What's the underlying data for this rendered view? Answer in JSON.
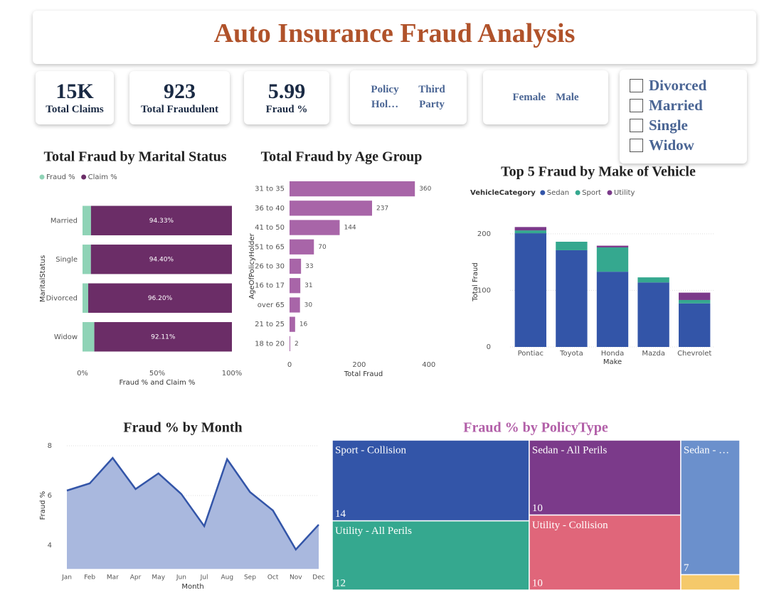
{
  "header": {
    "title": "Auto Insurance Fraud Analysis"
  },
  "cards": [
    {
      "value": "15K",
      "label": "Total Claims"
    },
    {
      "value": 923,
      "label": "Total Fraudulent"
    },
    {
      "value": 5.99,
      "label": "Fraud %"
    }
  ],
  "slicers": [
    {
      "items": [
        "Policy Hol…",
        "Third Party"
      ]
    },
    {
      "items": [
        "Female",
        "Male"
      ]
    },
    {
      "items": [
        "Divorced",
        "Married",
        "Single",
        "Widow"
      ]
    }
  ],
  "chart_data": [
    {
      "type": "bar",
      "orientation": "horizontal",
      "stacked": true,
      "title": "Total Fraud by Marital Status",
      "categories": [
        "Married",
        "Single",
        "Divorced",
        "Widow"
      ],
      "series": [
        {
          "name": "Fraud %",
          "color": "#8fd3b6",
          "values": [
            5.67,
            5.6,
            3.8,
            7.89
          ]
        },
        {
          "name": "Claim %",
          "color": "#6b2d67",
          "values": [
            94.33,
            94.4,
            96.2,
            92.11
          ],
          "value_labels": [
            "94.33%",
            "94.40%",
            "96.20%",
            "92.11%"
          ]
        }
      ],
      "xlim": [
        0,
        100
      ],
      "xticks": [
        {
          "value": 0,
          "label": "0%"
        },
        {
          "value": 50,
          "label": "50%"
        },
        {
          "value": 100,
          "label": "100%"
        }
      ],
      "x_label": "Fraud % and Claim %",
      "y_label": "MaritalStatus",
      "legend": "top-left"
    },
    {
      "type": "bar",
      "orientation": "horizontal",
      "title": "Total Fraud by Age Group",
      "categories": [
        "31 to 35",
        "36 to 40",
        "41 to 50",
        "51 to 65",
        "26 to 30",
        "16 to 17",
        "over 65",
        "21 to 25",
        "18 to 20"
      ],
      "values": [
        360,
        237,
        144,
        70,
        33,
        31,
        30,
        16,
        2
      ],
      "color": "#a865a8",
      "xlim": [
        0,
        425
      ],
      "xticks": [
        0,
        200,
        400
      ],
      "x_label": "Total Fraud",
      "y_label": "AgeOfPolicyHolder",
      "data_labels": true
    },
    {
      "type": "bar",
      "orientation": "vertical",
      "stacked": true,
      "title": "Top 5 Fraud by Make of Vehicle",
      "legend_title": "VehicleCategory",
      "categories": [
        "Pontiac",
        "Toyota",
        "Honda",
        "Mazda",
        "Chevrolet"
      ],
      "series": [
        {
          "name": "Sedan",
          "color": "#3355a8",
          "values": [
            201,
            171,
            133,
            114,
            77
          ]
        },
        {
          "name": "Sport",
          "color": "#35a88f",
          "values": [
            5,
            15,
            43,
            9,
            6
          ]
        },
        {
          "name": "Utility",
          "color": "#7b3a8a",
          "values": [
            6,
            0,
            3,
            0,
            13
          ]
        }
      ],
      "ylim": [
        0,
        230
      ],
      "yticks": [
        0,
        100,
        200
      ],
      "x_label": "Make",
      "y_label": "Total Fraud",
      "grid": true,
      "legend": "top-left"
    },
    {
      "type": "area",
      "title": "Fraud % by Month",
      "categories": [
        "Jan",
        "Feb",
        "Mar",
        "Apr",
        "May",
        "Jun",
        "Jul",
        "Aug",
        "Sep",
        "Oct",
        "Nov",
        "Dec"
      ],
      "values": [
        6.2,
        6.49,
        7.51,
        6.26,
        6.89,
        6.06,
        4.77,
        7.46,
        6.14,
        5.4,
        3.83,
        4.83
      ],
      "color": "#3355a8",
      "fill": "#a9b8de",
      "ylim": [
        3.05,
        8.15
      ],
      "yticks": [
        4,
        6,
        8
      ],
      "x_label": "Month",
      "y_label": "Fraud %",
      "grid": true
    },
    {
      "type": "treemap",
      "title": "Fraud % by PolicyType",
      "title_color": "#b25fa8",
      "names": [
        "Sport - Collision",
        "Utility - All Perils",
        "Sedan - All Perils",
        "Utility - Collision",
        "Sedan - …",
        null
      ],
      "values": [
        14,
        12,
        10,
        10,
        7,
        0.8
      ],
      "colors": [
        "#3355a8",
        "#35a88f",
        "#7b3a8a",
        "#e0667a",
        "#6b90cc",
        "#f5c96a"
      ]
    }
  ]
}
